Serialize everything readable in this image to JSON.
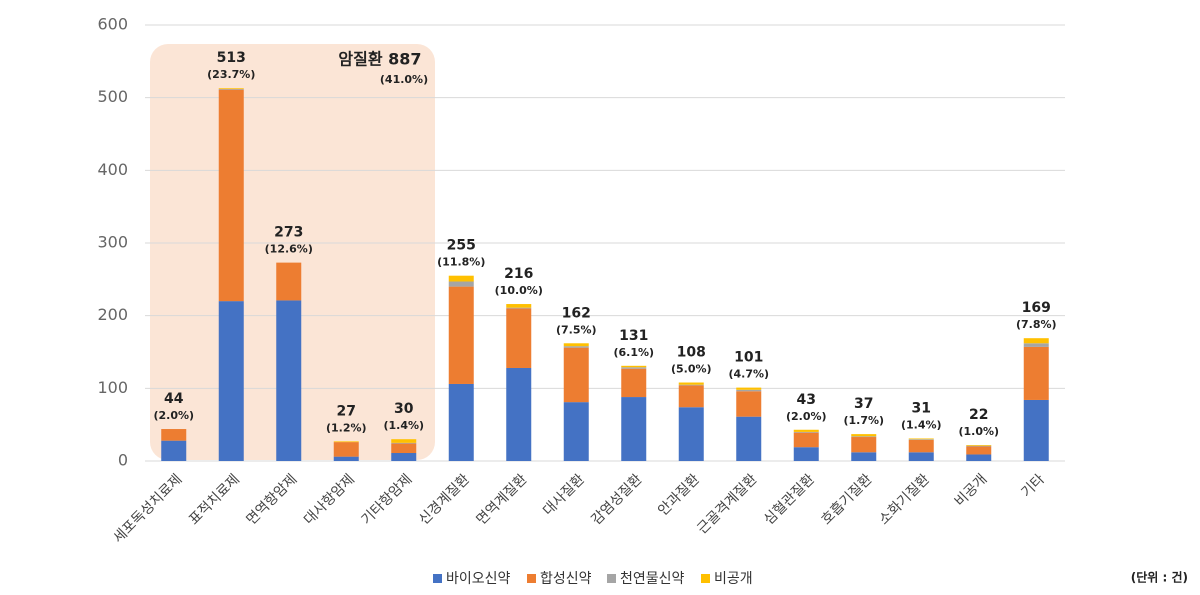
{
  "chart_data": {
    "type": "stacked_bar",
    "categories": [
      "세포독성치료제",
      "표적치료제",
      "면역항암제",
      "대사항암제",
      "기타항암제",
      "신경계질환",
      "면역계질환",
      "대사질환",
      "감염성질환",
      "안과질환",
      "근골격계질환",
      "심혈관질환",
      "호흡기질환",
      "소화기질환",
      "비공개",
      "기타"
    ],
    "series": [
      {
        "name": "바이오신약",
        "color": "#4472c4",
        "values": [
          28,
          220,
          221,
          6,
          11,
          106,
          128,
          81,
          88,
          74,
          61,
          19,
          12,
          12,
          9,
          84
        ]
      },
      {
        "name": "합성신약",
        "color": "#ed7d31",
        "values": [
          16,
          291,
          52,
          20,
          13,
          134,
          82,
          75,
          39,
          30,
          35,
          20,
          21,
          17,
          11,
          73
        ]
      },
      {
        "name": "천연물신약",
        "color": "#a5a5a5",
        "values": [
          0,
          1,
          0,
          0,
          1,
          7,
          1,
          2,
          2,
          1,
          2,
          1,
          1,
          1,
          1,
          5
        ]
      },
      {
        "name": "비공개",
        "color": "#ffc000",
        "values": [
          0,
          1,
          0,
          1,
          5,
          8,
          5,
          4,
          2,
          3,
          3,
          3,
          3,
          1,
          1,
          7
        ]
      }
    ],
    "totals": [
      44,
      513,
      273,
      27,
      30,
      255,
      216,
      162,
      131,
      108,
      101,
      43,
      37,
      31,
      22,
      169
    ],
    "total_share_labels": [
      "(2.0%)",
      "(23.7%)",
      "(12.6%)",
      "(1.2%)",
      "(1.4%)",
      "(11.8%)",
      "(10.0%)",
      "(7.5%)",
      "(6.1%)",
      "(5.0%)",
      "(4.7%)",
      "(2.0%)",
      "(1.7%)",
      "(1.4%)",
      "(1.0%)",
      "(7.8%)"
    ],
    "annotation": {
      "text": "암질환 887",
      "sub": "(41.0%)"
    },
    "unit_note": "(단위 : 건)",
    "ylim": [
      0,
      600
    ],
    "yticks": [
      0,
      100,
      200,
      300,
      400,
      500,
      600
    ],
    "grid": true,
    "legend": "bottom"
  }
}
